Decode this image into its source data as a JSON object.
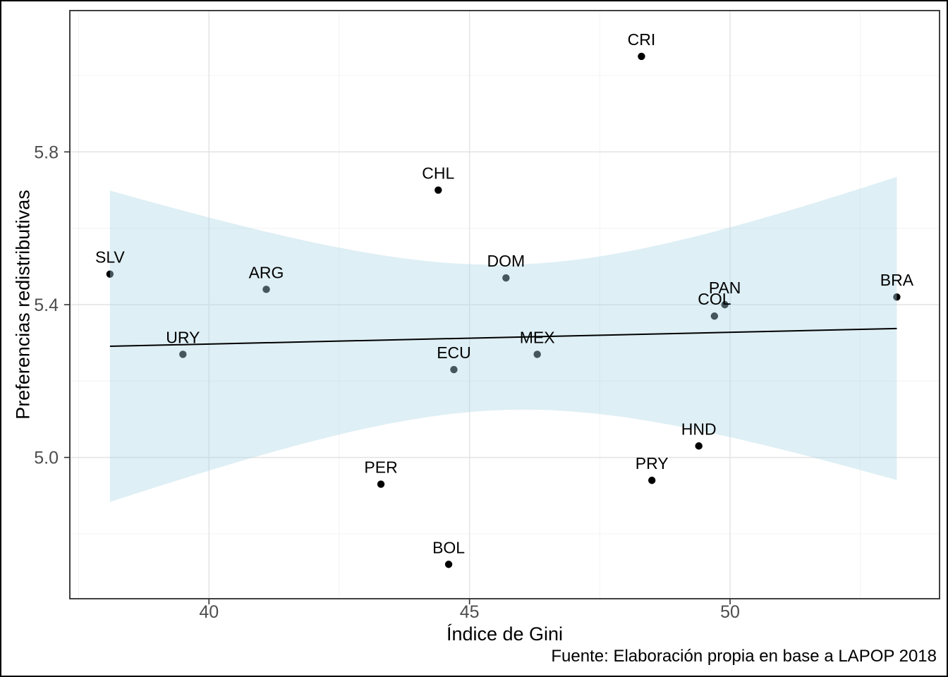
{
  "chart_data": {
    "type": "scatter",
    "title": "",
    "xlabel": "Índice de Gini",
    "ylabel": "Preferencias redistributivas",
    "caption": "Fuente: Elaboración propia en base a LAPOP 2018",
    "xlim": [
      37.33,
      54.02
    ],
    "ylim": [
      4.63,
      6.17
    ],
    "x_ticks": [
      40,
      45,
      50
    ],
    "y_ticks": [
      5.0,
      5.4,
      5.8
    ],
    "x_tick_labels": [
      "40",
      "45",
      "50"
    ],
    "y_tick_labels": [
      "5.0",
      "5.4",
      "5.8"
    ],
    "grid": true,
    "legend": false,
    "points": [
      {
        "label": "SLV",
        "x": 38.1,
        "y": 5.48
      },
      {
        "label": "URY",
        "x": 39.5,
        "y": 5.27
      },
      {
        "label": "ARG",
        "x": 41.1,
        "y": 5.44
      },
      {
        "label": "PER",
        "x": 43.3,
        "y": 4.93
      },
      {
        "label": "CHL",
        "x": 44.4,
        "y": 5.7
      },
      {
        "label": "BOL",
        "x": 44.6,
        "y": 4.72
      },
      {
        "label": "ECU",
        "x": 44.7,
        "y": 5.23
      },
      {
        "label": "DOM",
        "x": 45.7,
        "y": 5.47
      },
      {
        "label": "MEX",
        "x": 46.3,
        "y": 5.27
      },
      {
        "label": "CRI",
        "x": 48.3,
        "y": 6.05
      },
      {
        "label": "PRY",
        "x": 48.5,
        "y": 4.94
      },
      {
        "label": "HND",
        "x": 49.4,
        "y": 5.03
      },
      {
        "label": "COL",
        "x": 49.7,
        "y": 5.37
      },
      {
        "label": "PAN",
        "x": 49.9,
        "y": 5.4
      },
      {
        "label": "BRA",
        "x": 53.2,
        "y": 5.42
      }
    ],
    "trend": {
      "type": "lm",
      "ci_level": 0.95,
      "line_color": "#000000",
      "band_color": "#add8e6",
      "band_opacity": 0.4
    },
    "colors": {
      "point": "#000000",
      "point_label": "#000000",
      "grid_major": "#e3e3e3",
      "grid_minor": "#f0f0f0",
      "panel_border": "#2b2b2b",
      "tick": "#333333",
      "tick_label": "#4d4d4d",
      "background": "#ffffff"
    }
  }
}
